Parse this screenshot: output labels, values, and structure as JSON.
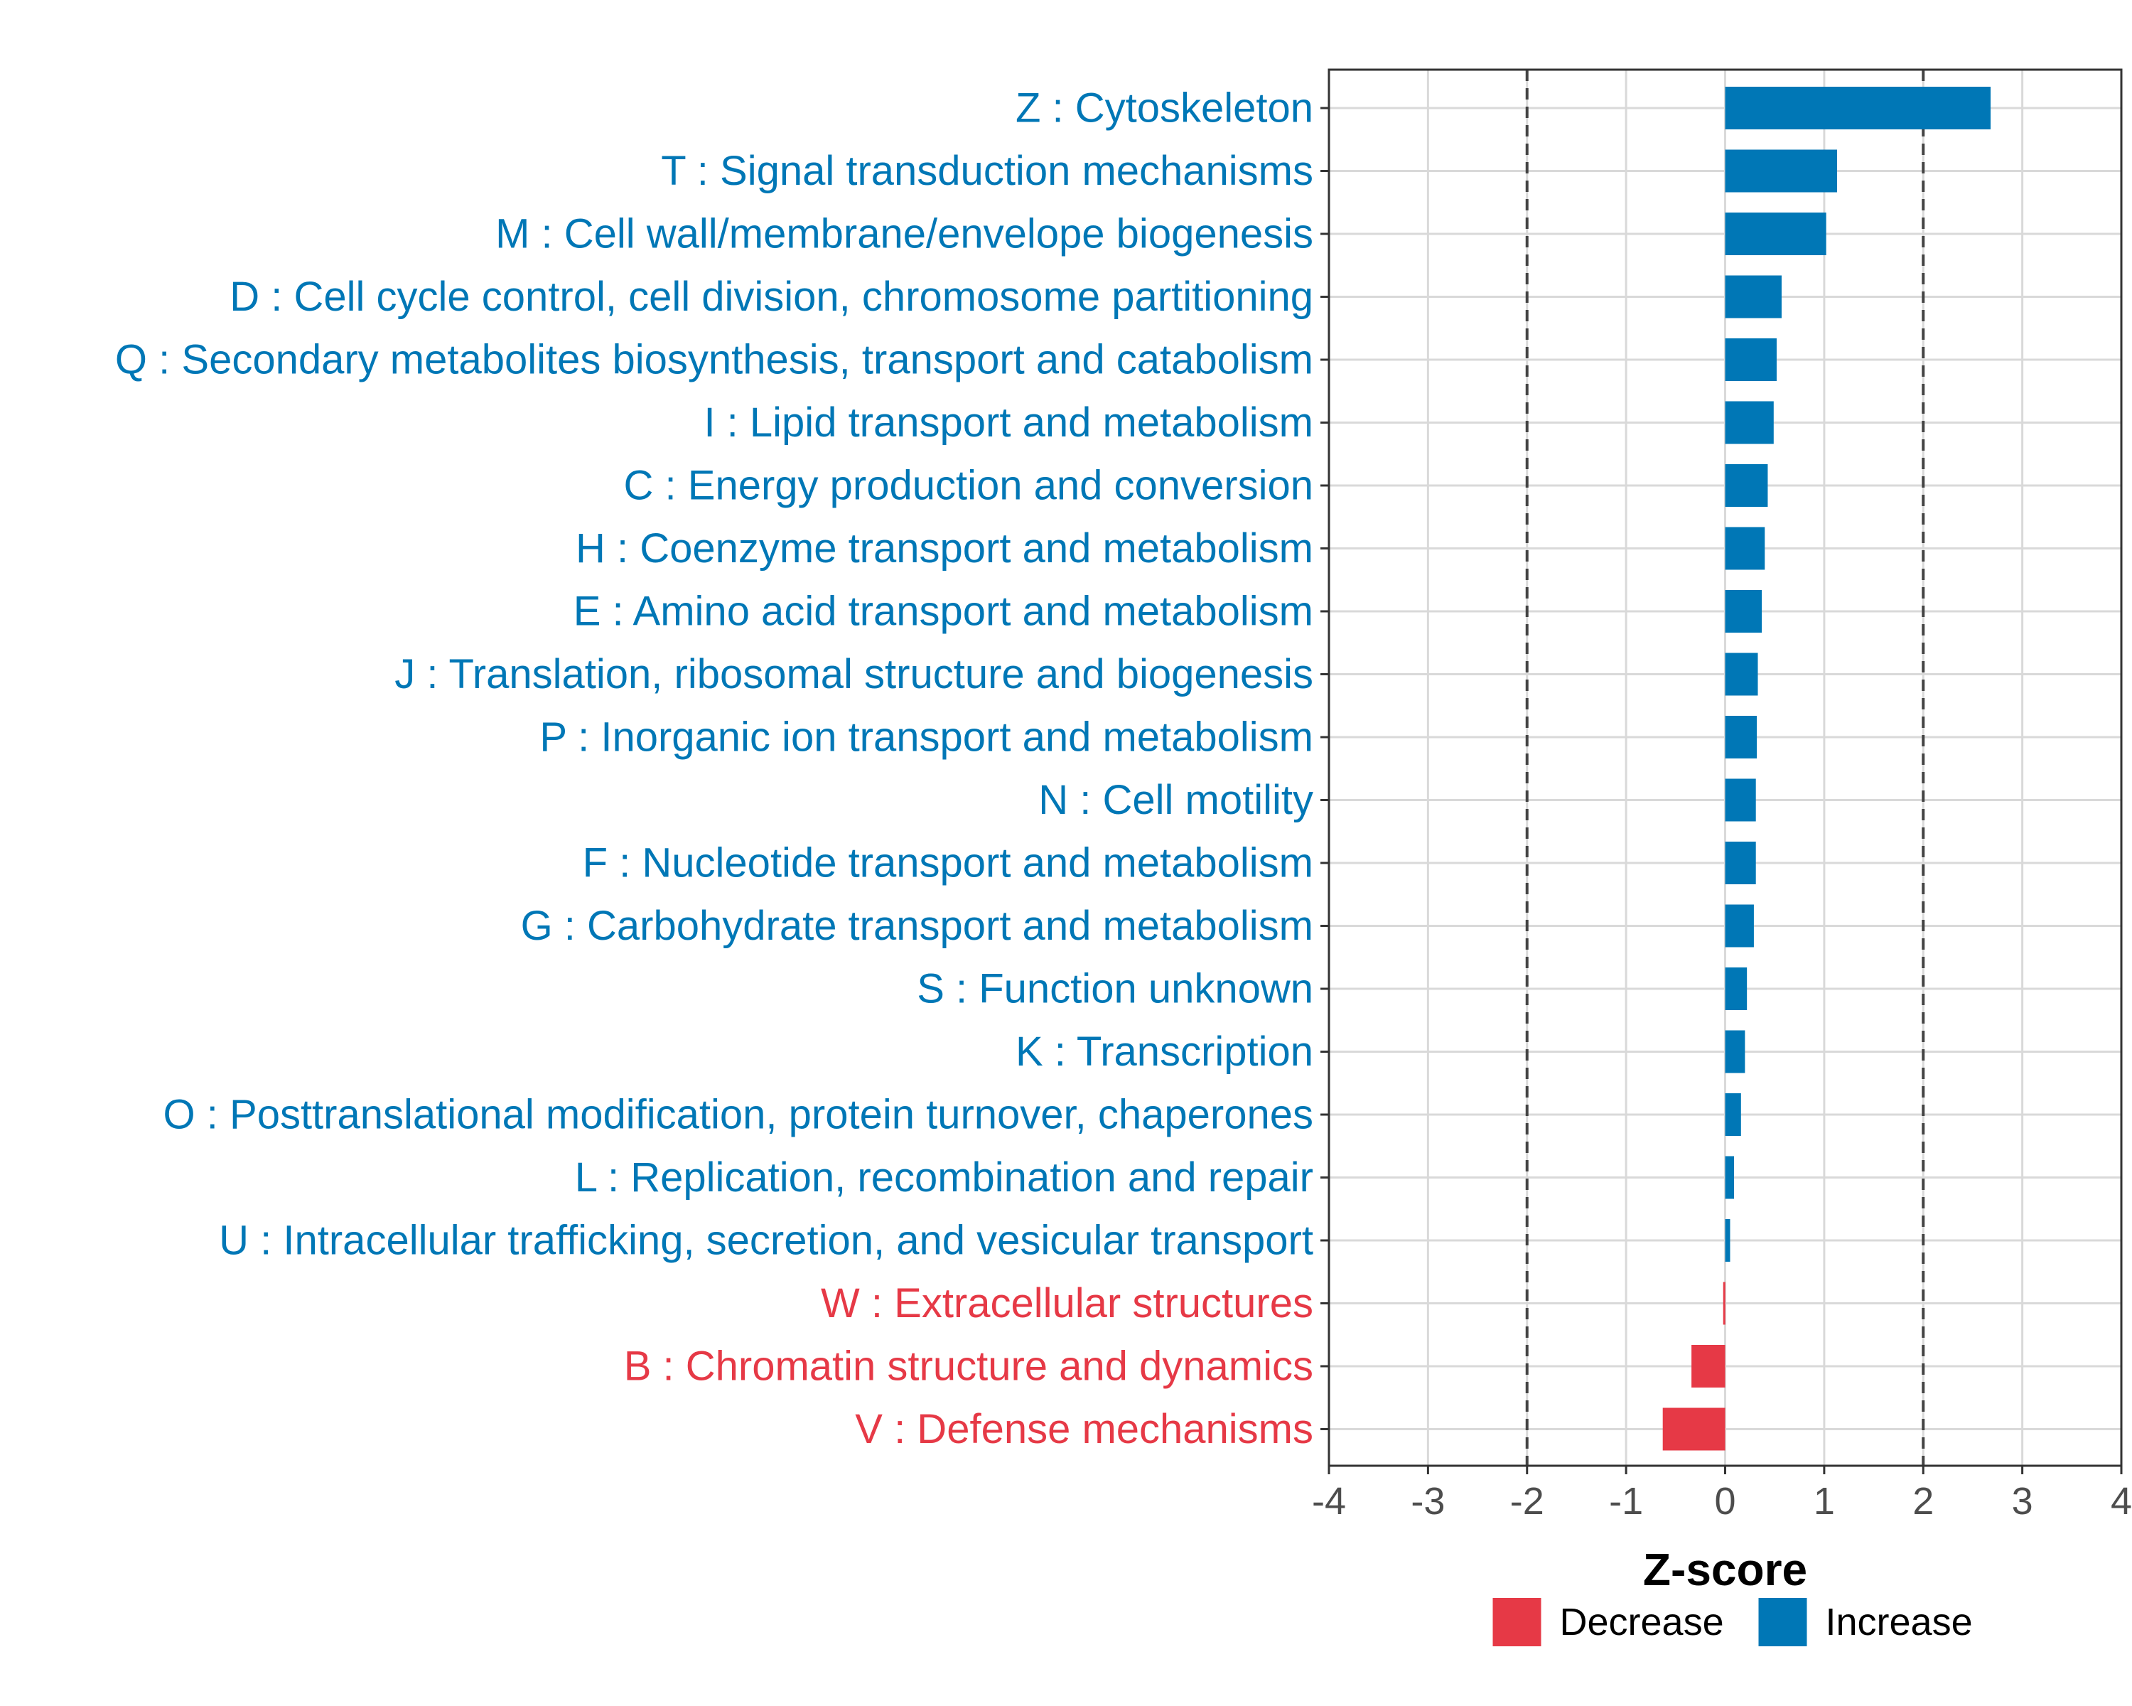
{
  "chart_data": {
    "type": "bar",
    "orientation": "horizontal",
    "xlabel": "Z-score",
    "ylabel": "",
    "xlim": [
      -4,
      4
    ],
    "xticks": [
      "-4",
      "-3",
      "-2",
      "-1",
      "0",
      "1",
      "2",
      "3",
      "4"
    ],
    "reference_lines": [
      -2,
      2
    ],
    "grid": true,
    "categories": [
      "Z : Cytoskeleton",
      "T : Signal transduction mechanisms",
      "M : Cell wall/membrane/envelope biogenesis",
      "D : Cell cycle control, cell division, chromosome partitioning",
      "Q : Secondary metabolites biosynthesis, transport and catabolism",
      "I : Lipid transport and metabolism",
      "C : Energy production and conversion",
      "H : Coenzyme transport and metabolism",
      "E : Amino acid transport and metabolism",
      "J : Translation, ribosomal structure and biogenesis",
      "P : Inorganic ion transport and metabolism",
      "N : Cell motility",
      "F : Nucleotide transport and metabolism",
      "G : Carbohydrate transport and metabolism",
      "S : Function unknown",
      "K : Transcription",
      "O : Posttranslational modification, protein turnover, chaperones",
      "L : Replication, recombination and repair",
      "U : Intracellular trafficking, secretion, and vesicular transport",
      "W : Extracellular structures",
      "B : Chromatin structure and dynamics",
      "V : Defense mechanisms"
    ],
    "values": [
      2.68,
      1.13,
      1.02,
      0.57,
      0.52,
      0.49,
      0.43,
      0.4,
      0.37,
      0.33,
      0.32,
      0.31,
      0.31,
      0.29,
      0.22,
      0.2,
      0.16,
      0.09,
      0.05,
      -0.02,
      -0.34,
      -0.63
    ],
    "groups": [
      "Increase",
      "Increase",
      "Increase",
      "Increase",
      "Increase",
      "Increase",
      "Increase",
      "Increase",
      "Increase",
      "Increase",
      "Increase",
      "Increase",
      "Increase",
      "Increase",
      "Increase",
      "Increase",
      "Increase",
      "Increase",
      "Increase",
      "Decrease",
      "Decrease",
      "Decrease"
    ],
    "legend": {
      "position": "bottom",
      "entries": [
        {
          "label": "Decrease",
          "color": "#e63946"
        },
        {
          "label": "Increase",
          "color": "#0077b6"
        }
      ]
    }
  }
}
